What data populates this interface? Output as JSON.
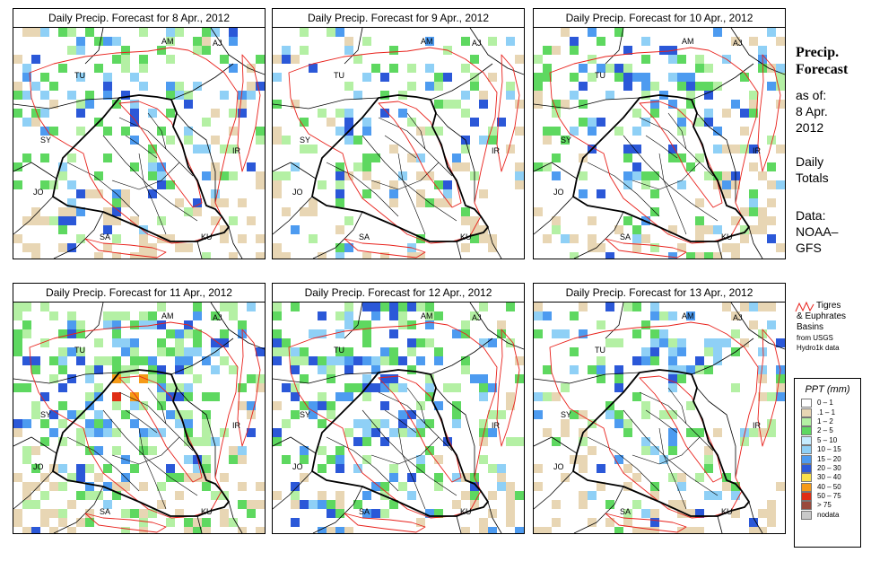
{
  "panels": [
    {
      "title": "Daily Precip. Forecast for  8 Apr., 2012",
      "intensity": 0.55
    },
    {
      "title": "Daily Precip. Forecast for  9 Apr., 2012",
      "intensity": 0.4
    },
    {
      "title": "Daily Precip. Forecast for  10 Apr., 2012",
      "intensity": 0.55
    },
    {
      "title": "Daily Precip. Forecast for  11 Apr., 2012",
      "intensity": 0.9
    },
    {
      "title": "Daily Precip. Forecast for  12 Apr., 2012",
      "intensity": 0.75
    },
    {
      "title": "Daily Precip. Forecast for  13 Apr., 2012",
      "intensity": 0.5
    }
  ],
  "map_labels": {
    "am": "AM",
    "aj": "AJ",
    "tu": "TU",
    "sy": "SY",
    "ir": "IR",
    "jo": "JO",
    "sa": "SA",
    "ku": "KU"
  },
  "sidebar": {
    "title_line1": "Precip.",
    "title_line2": "Forecast",
    "asof": "as of:",
    "date_line1": "8 Apr.",
    "date_line2": "2012",
    "daily1": "Daily",
    "daily2": "Totals",
    "data1": "Data:",
    "data2": "NOAA–",
    "data3": "GFS"
  },
  "basin_legend": {
    "line1": "Tigres",
    "line2": "& Euphrates",
    "line3": "Basins",
    "line4": "from USGS",
    "line5": "Hydro1k data",
    "color": "#e8211b"
  },
  "legend": {
    "title": "PPT (mm)",
    "items": [
      {
        "label": "0 – 1",
        "color": "#ffffff"
      },
      {
        "label": ".1 – 1",
        "color": "#e8d6b4"
      },
      {
        "label": "1 – 2",
        "color": "#b4f0a4"
      },
      {
        "label": "2 – 5",
        "color": "#5ed860"
      },
      {
        "label": "5 – 10",
        "color": "#c6ecff"
      },
      {
        "label": "10 – 15",
        "color": "#8fd0f6"
      },
      {
        "label": "15 – 20",
        "color": "#4d9bf0"
      },
      {
        "label": "20 – 30",
        "color": "#2b58d8"
      },
      {
        "label": "30 – 40",
        "color": "#f8df4a"
      },
      {
        "label": "40 – 50",
        "color": "#f59a17"
      },
      {
        "label": "50 – 75",
        "color": "#e02d14"
      },
      {
        "label": "> 75",
        "color": "#9a4a3c"
      },
      {
        "label": "nodata",
        "color": "#c8c8c8"
      }
    ]
  }
}
